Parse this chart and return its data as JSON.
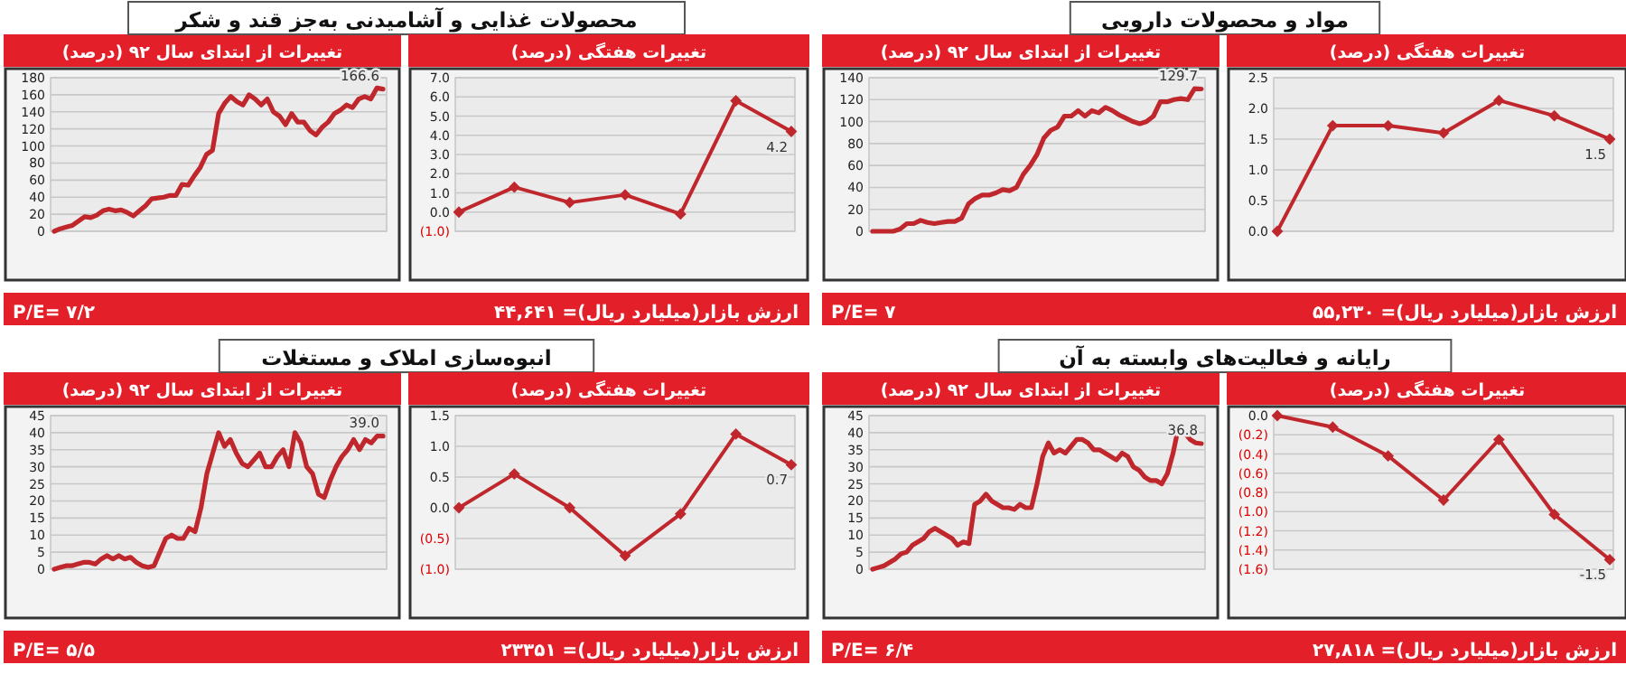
{
  "chart_data": [
    {
      "type": "line",
      "title": "محصولات غذایی و آشامیدنی به‌جز قند و شکر",
      "subtitle": "تغییرات از ابتدای سال ۹۲ (درصد)",
      "annotations": [
        "P/E= ۷/۲"
      ],
      "categories": [
        null,
        null,
        null,
        null,
        null,
        null,
        null,
        null,
        null,
        null,
        null,
        null,
        null,
        null,
        null,
        null,
        null,
        null,
        null,
        null,
        null,
        null,
        null,
        null,
        null,
        null,
        null,
        null,
        null,
        null,
        null,
        null,
        null,
        null,
        null,
        null,
        null,
        null,
        null,
        null,
        null,
        null,
        null,
        null,
        null,
        null,
        null,
        null,
        null,
        null,
        null,
        null,
        null,
        null,
        null
      ],
      "ylim": [
        0,
        180
      ],
      "yticks": [
        0,
        20,
        40,
        60,
        80,
        100,
        120,
        140,
        160,
        180
      ],
      "grid": "y",
      "marker": "none",
      "series": [
        {
          "color": "#c0272d",
          "values": [
            0,
            3,
            5,
            7,
            12,
            17,
            16,
            19,
            24,
            26,
            24,
            25,
            22,
            18,
            24,
            30,
            38,
            39,
            40,
            42,
            42,
            55,
            54,
            65,
            75,
            90,
            95,
            138,
            150,
            158,
            152,
            148,
            160,
            155,
            148,
            155,
            140,
            135,
            125,
            138,
            128,
            128,
            118,
            113,
            122,
            128,
            138,
            142,
            148,
            145,
            155,
            158,
            155,
            168,
            166.6
          ],
          "value_labels": [
            null,
            null,
            null,
            null,
            null,
            null,
            null,
            null,
            null,
            null,
            null,
            null,
            null,
            null,
            null,
            null,
            null,
            null,
            null,
            null,
            null,
            null,
            null,
            null,
            null,
            null,
            null,
            null,
            null,
            null,
            null,
            null,
            null,
            null,
            null,
            null,
            null,
            null,
            null,
            null,
            null,
            null,
            null,
            null,
            null,
            null,
            null,
            null,
            null,
            null,
            null,
            null,
            null,
            null,
            "166.6"
          ]
        }
      ]
    },
    {
      "type": "line",
      "subtitle": "تغییرات هفتگی (درصد)",
      "annotations": [
        "ارزش بازار(میلیارد ریال)= ۴۴,۶۴۱"
      ],
      "categories": [
        null,
        null,
        null,
        null,
        null,
        null,
        null
      ],
      "ylim": [
        -1,
        7
      ],
      "yticks": [
        {
          "value": -1,
          "label": "(1.0)"
        },
        {
          "value": 0,
          "label": "0.0"
        },
        {
          "value": 1,
          "label": "1.0"
        },
        {
          "value": 2,
          "label": "2.0"
        },
        {
          "value": 3,
          "label": "3.0"
        },
        {
          "value": 4,
          "label": "4.0"
        },
        {
          "value": 5,
          "label": "5.0"
        },
        {
          "value": 6,
          "label": "6.0"
        },
        {
          "value": 7,
          "label": "7.0"
        }
      ],
      "grid": "y",
      "marker": "diamond",
      "series": [
        {
          "color": "#c0272d",
          "values": [
            0.0,
            1.3,
            0.5,
            0.9,
            -0.1,
            5.8,
            4.2
          ],
          "value_labels": [
            null,
            null,
            null,
            null,
            null,
            null,
            "4.2"
          ]
        }
      ]
    },
    {
      "type": "line",
      "title": "مواد و محصولات دارویی",
      "subtitle": "تغییرات از ابتدای سال ۹۲ (درصد)",
      "annotations": [
        "P/E= ۷"
      ],
      "categories": [
        null,
        null,
        null,
        null,
        null,
        null,
        null,
        null,
        null,
        null,
        null,
        null,
        null,
        null,
        null,
        null,
        null,
        null,
        null,
        null,
        null,
        null,
        null,
        null,
        null,
        null,
        null,
        null,
        null,
        null,
        null,
        null,
        null,
        null,
        null,
        null,
        null,
        null,
        null,
        null,
        null,
        null,
        null,
        null,
        null,
        null,
        null,
        null,
        null
      ],
      "ylim": [
        0,
        140
      ],
      "yticks": [
        0,
        20,
        40,
        60,
        80,
        100,
        120,
        140
      ],
      "grid": "y",
      "marker": "none",
      "series": [
        {
          "color": "#c0272d",
          "values": [
            0,
            0,
            0,
            0,
            2,
            7,
            7,
            10,
            8,
            7,
            8,
            9,
            9,
            12,
            25,
            30,
            33,
            33,
            35,
            38,
            37,
            40,
            52,
            60,
            70,
            85,
            92,
            95,
            105,
            105,
            110,
            105,
            110,
            108,
            113,
            110,
            106,
            103,
            100,
            98,
            100,
            105,
            118,
            118,
            120,
            121,
            120,
            130,
            129.7
          ],
          "value_labels": [
            null,
            null,
            null,
            null,
            null,
            null,
            null,
            null,
            null,
            null,
            null,
            null,
            null,
            null,
            null,
            null,
            null,
            null,
            null,
            null,
            null,
            null,
            null,
            null,
            null,
            null,
            null,
            null,
            null,
            null,
            null,
            null,
            null,
            null,
            null,
            null,
            null,
            null,
            null,
            null,
            null,
            null,
            null,
            null,
            null,
            null,
            null,
            null,
            "129.7"
          ]
        }
      ]
    },
    {
      "type": "line",
      "subtitle": "تغییرات هفتگی (درصد)",
      "annotations": [
        "ارزش بازار(میلیارد ریال)= ۵۵,۲۳۰"
      ],
      "categories": [
        null,
        null,
        null,
        null,
        null,
        null,
        null
      ],
      "ylim": [
        0,
        2.5
      ],
      "yticks": [
        {
          "value": 0,
          "label": "0.0"
        },
        {
          "value": 0.5,
          "label": "0.5"
        },
        {
          "value": 1,
          "label": "1.0"
        },
        {
          "value": 1.5,
          "label": "1.5"
        },
        {
          "value": 2,
          "label": "2.0"
        },
        {
          "value": 2.5,
          "label": "2.5"
        }
      ],
      "grid": "y",
      "marker": "diamond",
      "series": [
        {
          "color": "#c0272d",
          "values": [
            0,
            1.72,
            1.72,
            1.6,
            2.13,
            1.88,
            1.5
          ],
          "value_labels": [
            null,
            null,
            null,
            null,
            null,
            null,
            "1.5"
          ]
        }
      ]
    },
    {
      "type": "line",
      "title": "انبوه‌سازی املاک و مستغلات",
      "subtitle": "تغییرات از ابتدای سال ۹۲ (درصد)",
      "annotations": [
        "P/E= ۵/۵"
      ],
      "categories": [
        null,
        null,
        null,
        null,
        null,
        null,
        null,
        null,
        null,
        null,
        null,
        null,
        null,
        null,
        null,
        null,
        null,
        null,
        null,
        null,
        null,
        null,
        null,
        null,
        null,
        null,
        null,
        null,
        null,
        null,
        null,
        null,
        null,
        null,
        null,
        null,
        null,
        null,
        null,
        null,
        null,
        null,
        null,
        null,
        null,
        null,
        null,
        null,
        null,
        null,
        null,
        null,
        null,
        null,
        null,
        null,
        null
      ],
      "ylim": [
        0,
        45
      ],
      "yticks": [
        0,
        5,
        10,
        15,
        20,
        25,
        30,
        35,
        40,
        45
      ],
      "grid": "y",
      "marker": "none",
      "series": [
        {
          "color": "#c0272d",
          "values": [
            0,
            0.5,
            1,
            1,
            1.5,
            2,
            2,
            1.5,
            3,
            4,
            3,
            4,
            3,
            3.5,
            2,
            1,
            0.5,
            1,
            5,
            9,
            10,
            9,
            9,
            12,
            11,
            18,
            28,
            34,
            40,
            36,
            38,
            34,
            31,
            30,
            32,
            34,
            30,
            30,
            33,
            35,
            30,
            40,
            37,
            30,
            28,
            22,
            21,
            26,
            30,
            33,
            35,
            38,
            35,
            38,
            37,
            39,
            39.0
          ],
          "value_labels": [
            null,
            null,
            null,
            null,
            null,
            null,
            null,
            null,
            null,
            null,
            null,
            null,
            null,
            null,
            null,
            null,
            null,
            null,
            null,
            null,
            null,
            null,
            null,
            null,
            null,
            null,
            null,
            null,
            null,
            null,
            null,
            null,
            null,
            null,
            null,
            null,
            null,
            null,
            null,
            null,
            null,
            null,
            null,
            null,
            null,
            null,
            null,
            null,
            null,
            null,
            null,
            null,
            null,
            null,
            null,
            null,
            "39.0"
          ]
        }
      ]
    },
    {
      "type": "line",
      "subtitle": "تغییرات هفتگی (درصد)",
      "annotations": [
        "ارزش بازار(میلیارد ریال)= ۲۳۳۵۱"
      ],
      "categories": [
        null,
        null,
        null,
        null,
        null,
        null,
        null
      ],
      "ylim": [
        -1,
        1.5
      ],
      "yticks": [
        {
          "value": -1,
          "label": "(1.0)"
        },
        {
          "value": -0.5,
          "label": "(0.5)"
        },
        {
          "value": 0,
          "label": "0.0"
        },
        {
          "value": 0.5,
          "label": "0.5"
        },
        {
          "value": 1,
          "label": "1.0"
        },
        {
          "value": 1.5,
          "label": "1.5"
        }
      ],
      "grid": "y",
      "marker": "diamond",
      "series": [
        {
          "color": "#c0272d",
          "values": [
            0,
            0.55,
            0.0,
            -0.78,
            -0.1,
            1.2,
            0.7
          ],
          "value_labels": [
            null,
            null,
            null,
            null,
            null,
            null,
            "0.7"
          ]
        }
      ]
    },
    {
      "type": "line",
      "title": "رایانه و فعالیت‌های وابسته به آن",
      "subtitle": "تغییرات از ابتدای سال ۹۲ (درصد)",
      "annotations": [
        "P/E= ۶/۴"
      ],
      "categories": [
        null,
        null,
        null,
        null,
        null,
        null,
        null,
        null,
        null,
        null,
        null,
        null,
        null,
        null,
        null,
        null,
        null,
        null,
        null,
        null,
        null,
        null,
        null,
        null,
        null,
        null,
        null,
        null,
        null,
        null,
        null,
        null,
        null,
        null,
        null,
        null,
        null,
        null,
        null,
        null,
        null,
        null,
        null,
        null,
        null,
        null,
        null,
        null,
        null,
        null,
        null,
        null,
        null,
        null,
        null,
        null,
        null,
        null,
        null
      ],
      "ylim": [
        0,
        45
      ],
      "yticks": [
        0,
        5,
        10,
        15,
        20,
        25,
        30,
        35,
        40,
        45
      ],
      "grid": "y",
      "marker": "none",
      "series": [
        {
          "color": "#c0272d",
          "values": [
            0,
            0.5,
            1,
            2,
            3,
            4.5,
            5,
            7,
            8,
            9,
            11,
            12,
            11,
            10,
            9,
            7,
            8,
            7.5,
            19,
            20,
            22,
            20,
            19,
            18,
            18,
            17.5,
            19,
            18,
            18,
            25,
            33,
            37,
            34,
            35,
            34,
            36,
            38,
            38,
            37,
            35,
            35,
            34,
            33,
            32,
            34,
            33,
            30,
            29,
            27,
            26,
            26,
            25,
            28,
            34,
            42,
            40,
            38,
            37,
            36.8
          ],
          "value_labels": [
            null,
            null,
            null,
            null,
            null,
            null,
            null,
            null,
            null,
            null,
            null,
            null,
            null,
            null,
            null,
            null,
            null,
            null,
            null,
            null,
            null,
            null,
            null,
            null,
            null,
            null,
            null,
            null,
            null,
            null,
            null,
            null,
            null,
            null,
            null,
            null,
            null,
            null,
            null,
            null,
            null,
            null,
            null,
            null,
            null,
            null,
            null,
            null,
            null,
            null,
            null,
            null,
            null,
            null,
            null,
            null,
            null,
            null,
            "36.8"
          ]
        }
      ]
    },
    {
      "type": "line",
      "subtitle": "تغییرات هفتگی (درصد)",
      "annotations": [
        "ارزش بازار(میلیارد ریال)= ۲۷,۸۱۸"
      ],
      "categories": [
        null,
        null,
        null,
        null,
        null,
        null,
        null
      ],
      "ylim": [
        -1.6,
        0
      ],
      "yticks": [
        {
          "value": 0,
          "label": "0.0"
        },
        {
          "value": -0.2,
          "label": "(0.2)"
        },
        {
          "value": -0.4,
          "label": "(0.4)"
        },
        {
          "value": -0.6,
          "label": "(0.6)"
        },
        {
          "value": -0.8,
          "label": "(0.8)"
        },
        {
          "value": -1,
          "label": "(1.0)"
        },
        {
          "value": -1.2,
          "label": "(1.2)"
        },
        {
          "value": -1.4,
          "label": "(1.4)"
        },
        {
          "value": -1.6,
          "label": "(1.6)"
        }
      ],
      "grid": "y",
      "marker": "diamond",
      "series": [
        {
          "color": "#c0272d",
          "values": [
            0,
            -0.12,
            -0.42,
            -0.88,
            -0.25,
            -1.03,
            -1.5
          ],
          "value_labels": [
            null,
            null,
            null,
            null,
            null,
            null,
            "-1.5"
          ]
        }
      ]
    }
  ]
}
